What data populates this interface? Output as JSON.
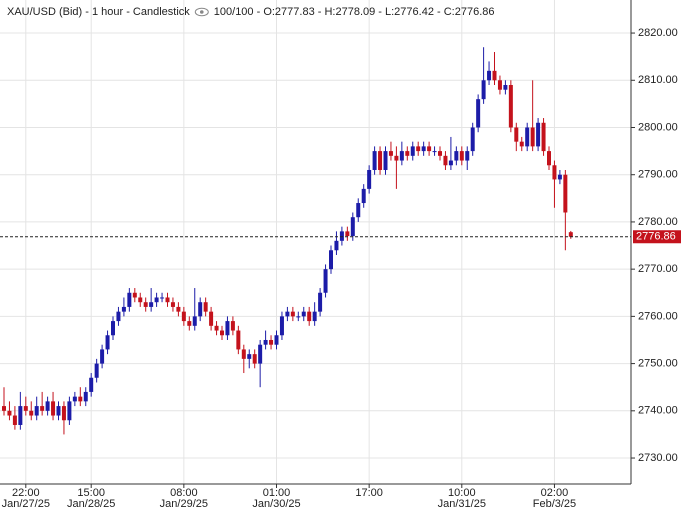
{
  "chart_data": {
    "type": "candlestick",
    "title": "XAU/USD (Bid) - 1 hour - Candlestick",
    "subtitle": "100/100 - O:2777.83 - H:2778.09 - L:2776.42 - C:2776.86",
    "up_color": "#1c1ca8",
    "down_color": "#c4121c",
    "ylim": [
      2724.5,
      2827.0
    ],
    "yticks": [
      {
        "value": 2730,
        "label": "2730.00"
      },
      {
        "value": 2740,
        "label": "2740.00"
      },
      {
        "value": 2750,
        "label": "2750.00"
      },
      {
        "value": 2760,
        "label": "2760.00"
      },
      {
        "value": 2770,
        "label": "2770.00"
      },
      {
        "value": 2780,
        "label": "2780.00"
      },
      {
        "value": 2790,
        "label": "2790.00"
      },
      {
        "value": 2800,
        "label": "2800.00"
      },
      {
        "value": 2810,
        "label": "2810.00"
      },
      {
        "value": 2820,
        "label": "2820.00"
      }
    ],
    "grid": true,
    "categories": [
      null,
      null,
      null,
      null,
      "22:00",
      null,
      null,
      null,
      null,
      null,
      null,
      null,
      null,
      null,
      null,
      null,
      "15:00",
      null,
      null,
      null,
      null,
      null,
      null,
      null,
      null,
      null,
      null,
      null,
      null,
      null,
      null,
      null,
      null,
      "08:00",
      null,
      null,
      null,
      null,
      null,
      null,
      null,
      null,
      null,
      null,
      null,
      null,
      null,
      null,
      null,
      null,
      "01:00",
      null,
      null,
      null,
      null,
      null,
      null,
      null,
      null,
      null,
      null,
      null,
      null,
      null,
      null,
      null,
      null,
      "17:00",
      null,
      null,
      null,
      null,
      null,
      null,
      null,
      null,
      null,
      null,
      null,
      null,
      null,
      null,
      null,
      null,
      "10:00",
      null,
      null,
      null,
      null,
      null,
      null,
      null,
      null,
      null,
      null,
      null,
      null,
      null,
      null,
      null,
      null,
      "02:00",
      null,
      null,
      null
    ],
    "category_dates": [
      null,
      null,
      null,
      null,
      "Jan/27/25",
      null,
      null,
      null,
      null,
      null,
      null,
      null,
      null,
      null,
      null,
      null,
      "Jan/28/25",
      null,
      null,
      null,
      null,
      null,
      null,
      null,
      null,
      null,
      null,
      null,
      null,
      null,
      null,
      null,
      null,
      "Jan/29/25",
      null,
      null,
      null,
      null,
      null,
      null,
      null,
      null,
      null,
      null,
      null,
      null,
      null,
      null,
      null,
      null,
      "Jan/30/25",
      null,
      null,
      null,
      null,
      null,
      null,
      null,
      null,
      null,
      null,
      null,
      null,
      null,
      null,
      null,
      null,
      null,
      null,
      null,
      null,
      null,
      null,
      null,
      null,
      null,
      null,
      null,
      null,
      null,
      null,
      null,
      null,
      null,
      "Jan/31/25",
      null,
      null,
      null,
      null,
      null,
      null,
      null,
      null,
      null,
      null,
      null,
      null,
      null,
      null,
      null,
      null,
      "Feb/3/25",
      null,
      null,
      null
    ],
    "open": [
      2741,
      2740,
      2739,
      2737,
      2741,
      2740,
      2739,
      2741,
      2740,
      2742,
      2739,
      2741,
      2738,
      2742,
      2743,
      2742,
      2744,
      2747,
      2750,
      2753,
      2756,
      2759,
      2761,
      2762,
      2765,
      2764,
      2763,
      2762,
      2763,
      2764,
      2764,
      2763,
      2762,
      2761,
      2759,
      2758,
      2760,
      2763,
      2761,
      2758,
      2757,
      2756,
      2759,
      2757,
      2753,
      2751,
      2752,
      2750,
      2754,
      2755,
      2754,
      2756,
      2760,
      2761,
      2760,
      2760,
      2761,
      2759,
      2761,
      2765,
      2770,
      2774,
      2776,
      2778,
      2777,
      2781,
      2784,
      2787,
      2791,
      2795,
      2791,
      2795,
      2794,
      2793,
      2795,
      2794,
      2796,
      2795,
      2796,
      2795,
      2795,
      2794,
      2792,
      2793,
      2795,
      2793,
      2795,
      2800,
      2806,
      2810,
      2812,
      2810,
      2808,
      2809,
      2800,
      2797,
      2796,
      2800,
      2796,
      2801,
      2795,
      2792,
      2789,
      2790,
      2777.83
    ],
    "high": [
      2745,
      2742,
      2741,
      2744,
      2743,
      2742,
      2743,
      2744,
      2743,
      2744,
      2742,
      2742,
      2743,
      2744,
      2745,
      2745,
      2748,
      2751,
      2754,
      2757,
      2760,
      2762,
      2764,
      2766,
      2766,
      2765,
      2764,
      2766,
      2765,
      2765,
      2765,
      2764,
      2763,
      2762,
      2760,
      2766,
      2764,
      2764,
      2762,
      2759,
      2758,
      2760,
      2760,
      2758,
      2754,
      2753,
      2753,
      2755,
      2757,
      2756,
      2757,
      2761,
      2762,
      2762,
      2761,
      2762,
      2762,
      2763,
      2766,
      2771,
      2775,
      2778,
      2779,
      2779,
      2782,
      2785,
      2788,
      2792,
      2796,
      2796,
      2796,
      2797,
      2796,
      2797,
      2796,
      2797,
      2797,
      2797,
      2797,
      2796,
      2796,
      2795,
      2798,
      2796,
      2796,
      2796,
      2801,
      2807,
      2817,
      2814,
      2816,
      2811,
      2810,
      2810,
      2801,
      2798,
      2801,
      2810,
      2802,
      2802,
      2796,
      2793,
      2791,
      2791,
      2778.09
    ],
    "low": [
      2739,
      2738,
      2736,
      2736,
      2739,
      2738,
      2738,
      2739,
      2739,
      2738,
      2738,
      2735,
      2737,
      2741,
      2741,
      2741,
      2743,
      2746,
      2749,
      2752,
      2755,
      2758,
      2760,
      2761,
      2763,
      2762,
      2761,
      2761,
      2762,
      2763,
      2762,
      2761,
      2760,
      2758,
      2757,
      2757,
      2759,
      2760,
      2757,
      2756,
      2755,
      2755,
      2756,
      2752,
      2748,
      2749,
      2749,
      2745,
      2753,
      2753,
      2753,
      2755,
      2759,
      2759,
      2759,
      2759,
      2758,
      2758,
      2760,
      2764,
      2769,
      2773,
      2775,
      2776,
      2776,
      2780,
      2783,
      2786,
      2790,
      2790,
      2790,
      2793,
      2787,
      2792,
      2793,
      2793,
      2794,
      2794,
      2794,
      2794,
      2793,
      2791,
      2791,
      2792,
      2792,
      2791,
      2794,
      2799,
      2805,
      2809,
      2809,
      2807,
      2807,
      2799,
      2795,
      2795,
      2795,
      2795,
      2795,
      2794,
      2791,
      2783,
      2788,
      2774,
      2776.42
    ],
    "close": [
      2740,
      2739,
      2737,
      2741,
      2740,
      2739,
      2741,
      2740,
      2742,
      2739,
      2741,
      2738,
      2742,
      2743,
      2742,
      2744,
      2747,
      2750,
      2753,
      2756,
      2759,
      2761,
      2762,
      2765,
      2764,
      2763,
      2762,
      2763,
      2764,
      2764,
      2763,
      2762,
      2761,
      2759,
      2758,
      2760,
      2763,
      2761,
      2758,
      2757,
      2756,
      2759,
      2757,
      2753,
      2751,
      2752,
      2750,
      2754,
      2755,
      2754,
      2756,
      2760,
      2761,
      2760,
      2760,
      2761,
      2759,
      2761,
      2765,
      2770,
      2774,
      2776,
      2778,
      2777,
      2781,
      2784,
      2787,
      2791,
      2795,
      2791,
      2795,
      2794,
      2793,
      2795,
      2794,
      2796,
      2795,
      2796,
      2795,
      2795,
      2794,
      2792,
      2793,
      2795,
      2793,
      2795,
      2800,
      2806,
      2810,
      2812,
      2810,
      2808,
      2809,
      2800,
      2797,
      2796,
      2800,
      2796,
      2801,
      2795,
      2792,
      2789,
      2790,
      2782,
      2776.86
    ]
  }
}
